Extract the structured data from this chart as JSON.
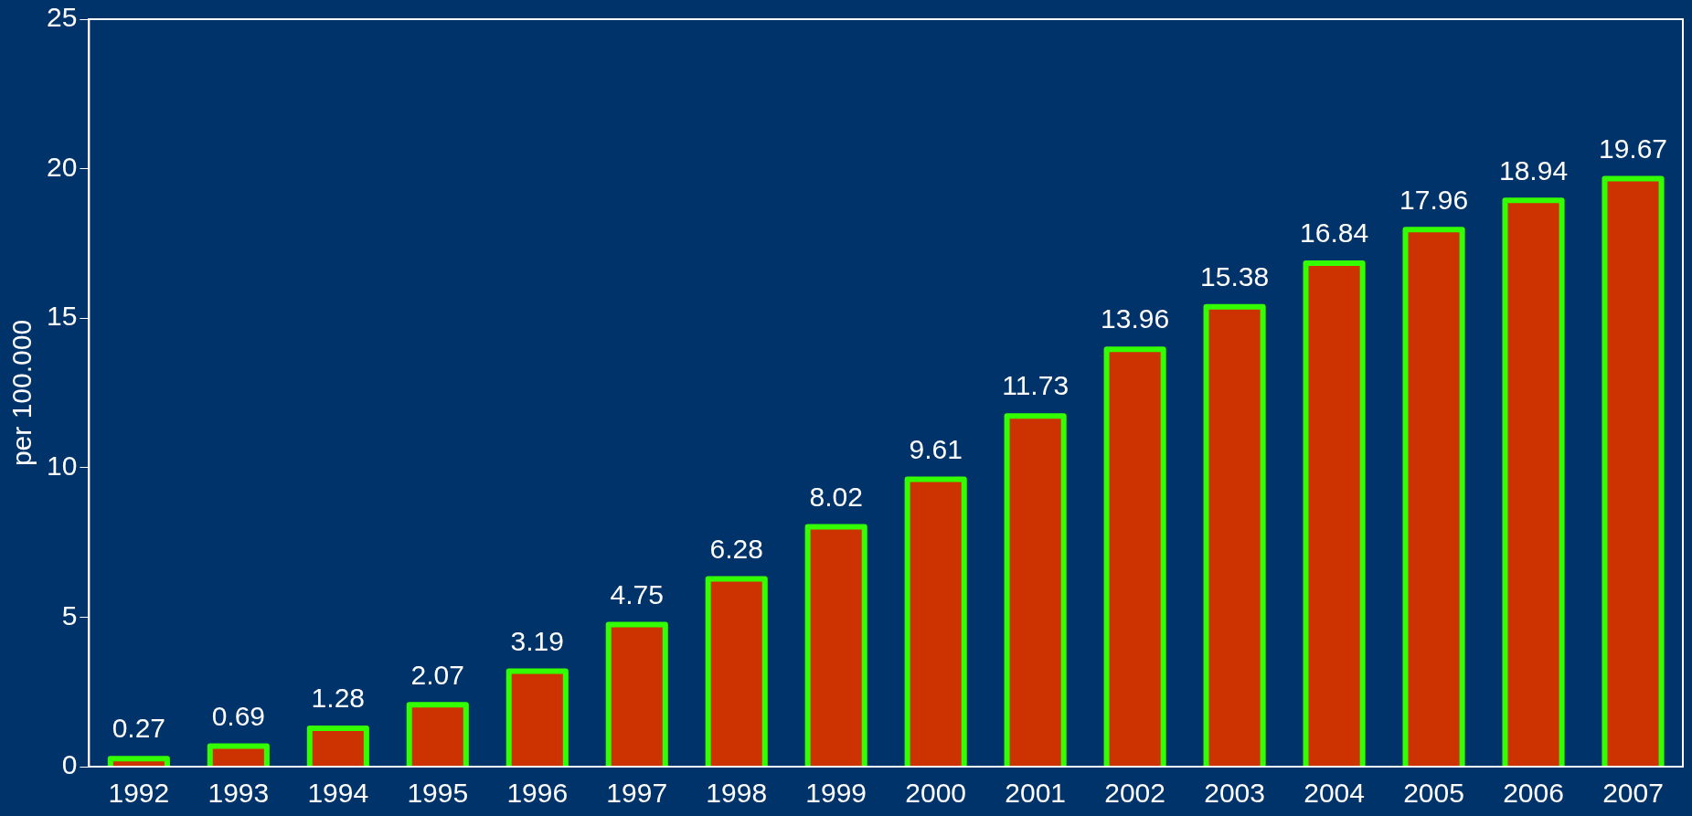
{
  "chart_data": {
    "type": "bar",
    "ylabel": "per 100.000",
    "categories": [
      "1992",
      "1993",
      "1994",
      "1995",
      "1996",
      "1997",
      "1998",
      "1999",
      "2000",
      "2001",
      "2002",
      "2003",
      "2004",
      "2005",
      "2006",
      "2007"
    ],
    "values": [
      0.27,
      0.69,
      1.28,
      2.07,
      3.19,
      4.75,
      6.28,
      8.02,
      9.61,
      11.73,
      13.96,
      15.38,
      16.84,
      17.96,
      18.94,
      19.67
    ],
    "color": "#cc3300",
    "ylim": [
      0,
      25
    ],
    "yticks": [
      0,
      5,
      10,
      15,
      20,
      25
    ],
    "grid": false,
    "legend": false,
    "data_labels": true
  }
}
